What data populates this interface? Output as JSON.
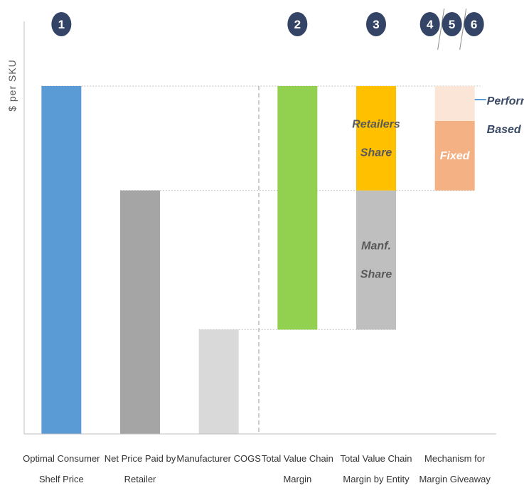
{
  "chart_data": {
    "type": "bar",
    "title": "",
    "ylabel": "$ per SKU",
    "xlabel": "",
    "ylim": [
      0,
      100
    ],
    "grid": false,
    "categories": [
      [
        "Optimal Consumer",
        "Shelf Price"
      ],
      [
        "Net Price Paid by",
        "Retailer"
      ],
      [
        "Manufacturer COGS"
      ],
      [
        "Total Value Chain",
        "Margin"
      ],
      [
        "Total Value Chain",
        "Margin by Entity"
      ],
      [
        "Mechanism for",
        "Margin Giveaway"
      ]
    ],
    "bars": [
      {
        "segments": [
          {
            "from": 0,
            "to": 100,
            "color": "#5b9bd5",
            "label": ""
          }
        ]
      },
      {
        "segments": [
          {
            "from": 0,
            "to": 70,
            "color": "#a5a5a5",
            "label": ""
          }
        ]
      },
      {
        "segments": [
          {
            "from": 0,
            "to": 30,
            "color": "#d9d9d9",
            "label": ""
          }
        ]
      },
      {
        "segments": [
          {
            "from": 30,
            "to": 100,
            "color": "#92d050",
            "label": ""
          }
        ]
      },
      {
        "segments": [
          {
            "from": 30,
            "to": 70,
            "color": "#bfbfbf",
            "label": [
              "Manf.",
              "Share"
            ],
            "label_color": "#595959"
          },
          {
            "from": 70,
            "to": 100,
            "color": "#ffc000",
            "label": [
              "Retailers",
              "Share"
            ],
            "label_color": "#595959"
          }
        ]
      },
      {
        "segments": [
          {
            "from": 70,
            "to": 90,
            "color": "#f4b183",
            "label": [
              "Fixed"
            ],
            "label_color": "#ffffff"
          },
          {
            "from": 90,
            "to": 100,
            "color": "#fbe5d6",
            "label": ""
          }
        ]
      }
    ],
    "annotations": {
      "perform_label": [
        "Perform.",
        "Based"
      ],
      "accent_color": "#5b9bd5"
    },
    "badges": [
      {
        "text": "1",
        "category": 0
      },
      {
        "text": "2",
        "category": 3
      },
      {
        "text": "3",
        "category": 4
      },
      {
        "text": "4",
        "category": 5,
        "group": 0
      },
      {
        "text": "5",
        "category": 5,
        "group": 1
      },
      {
        "text": "6",
        "category": 5,
        "group": 2
      }
    ],
    "colors": {
      "badge": "#334466",
      "axis": "#bfbfbf",
      "guide": "#bfbfbf"
    }
  }
}
